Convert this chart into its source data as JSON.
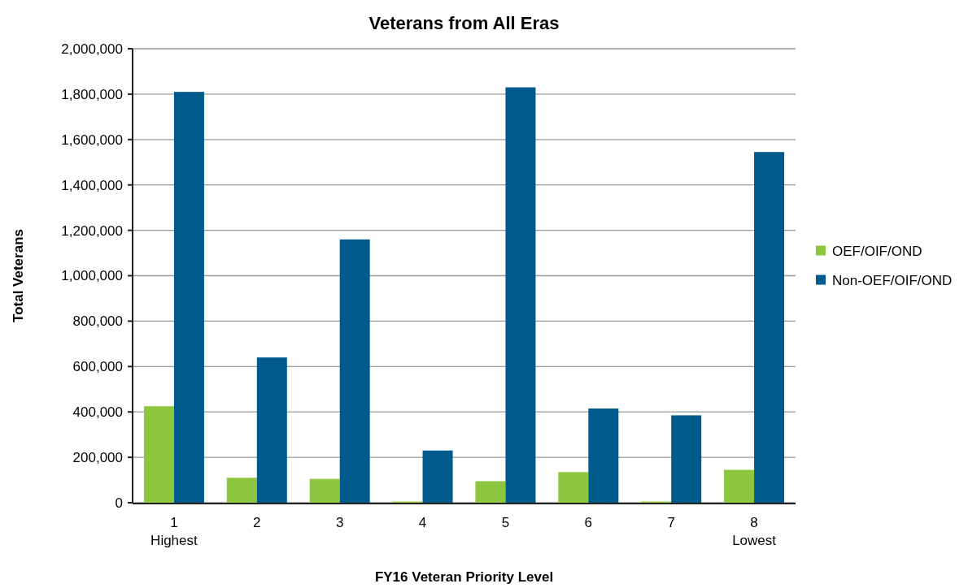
{
  "chart_data": {
    "type": "bar",
    "title": "Veterans from All Eras",
    "xlabel": "FY16 Veteran Priority Level",
    "ylabel": "Total Veterans",
    "categories": [
      "1\nHighest",
      "2",
      "3",
      "4",
      "5",
      "6",
      "7",
      "8\nLowest"
    ],
    "series": [
      {
        "name": "OEF/OIF/OND",
        "color": "#8dc63f",
        "values": [
          425000,
          110000,
          105000,
          5000,
          95000,
          135000,
          5000,
          145000
        ]
      },
      {
        "name": "Non-OEF/OIF/OND",
        "color": "#005a8c",
        "values": [
          1810000,
          640000,
          1160000,
          230000,
          1830000,
          415000,
          385000,
          1545000
        ]
      }
    ],
    "ylim": [
      0,
      2000000
    ],
    "yticks": [
      {
        "value": 0,
        "label": "0"
      },
      {
        "value": 200000,
        "label": "200,000"
      },
      {
        "value": 400000,
        "label": "400,000"
      },
      {
        "value": 600000,
        "label": "600,000"
      },
      {
        "value": 800000,
        "label": "800,000"
      },
      {
        "value": 1000000,
        "label": "1,000,000"
      },
      {
        "value": 1200000,
        "label": "1,200,000"
      },
      {
        "value": 1400000,
        "label": "1,400,000"
      },
      {
        "value": 1600000,
        "label": "1,600,000"
      },
      {
        "value": 1800000,
        "label": "1,800,000"
      },
      {
        "value": 2000000,
        "label": "2,000,000"
      }
    ],
    "grid": "y",
    "legend": "right"
  }
}
